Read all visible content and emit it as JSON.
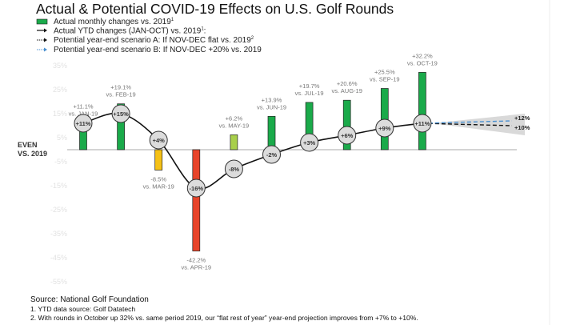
{
  "title": "Actual & Potential COVID-19 Effects on U.S. Golf Rounds",
  "legend": [
    {
      "label": "Actual monthly changes vs. 2019",
      "sup": "1",
      "icon": "green-bar",
      "color": "#1aaa4a"
    },
    {
      "label": "Actual YTD changes (JAN-OCT) vs. 2019",
      "sup": "1",
      "suffix": ":",
      "icon": "solid-arrow",
      "color": "#111111"
    },
    {
      "label": "Potential year-end scenario A: If NOV-DEC flat vs. 2019",
      "sup": "2",
      "icon": "dashed-black-arrow",
      "color": "#111111"
    },
    {
      "label": "Potential year-end scenario B: If NOV-DEC +20% vs. 2019",
      "icon": "dashed-blue-arrow",
      "color": "#4a90d0"
    }
  ],
  "chart_data": {
    "type": "bar",
    "title": "Actual & Potential COVID-19 Effects on U.S. Golf Rounds",
    "zero_label": [
      "EVEN",
      "VS. 2019"
    ],
    "yticks": [
      "35%",
      "25%",
      "15%",
      "5%",
      "-5%",
      "-15%",
      "-25%",
      "-35%",
      "-45%",
      "-55%"
    ],
    "ytick_values": [
      35,
      25,
      15,
      5,
      -5,
      -15,
      -25,
      -35,
      -45,
      -55
    ],
    "ylim": [
      -57,
      37
    ],
    "grid": false,
    "categories": [
      "JAN",
      "FEB",
      "MAR",
      "APR",
      "MAY",
      "JUN",
      "JUL",
      "AUG",
      "SEP",
      "OCT"
    ],
    "monthly": {
      "values": [
        11.1,
        19.1,
        -8.5,
        -42.2,
        6.2,
        13.9,
        19.7,
        20.6,
        25.5,
        32.2
      ],
      "value_labels": [
        "+11.1%",
        "+19.1%",
        "-8.5%",
        "-42.2%",
        "+6.2%",
        "+13.9%",
        "+19.7%",
        "+20.6%",
        "+25.5%",
        "+32.2%"
      ],
      "compare_labels": [
        "vs. JAN-19",
        "vs. FEB-19",
        "vs. MAR-19",
        "vs. APR-19",
        "vs. MAY-19",
        "vs. JUN-19",
        "vs. JUL-19",
        "vs. AUG-19",
        "vs. SEP-19",
        "vs. OCT-19"
      ],
      "colors": [
        "#1aaa4a",
        "#1aaa4a",
        "#f5c116",
        "#e8442a",
        "#a8cf4a",
        "#1aaa4a",
        "#1aaa4a",
        "#1aaa4a",
        "#1aaa4a",
        "#1aaa4a"
      ]
    },
    "ytd": {
      "values": [
        11,
        15,
        4,
        -16,
        -8,
        -2,
        3,
        6,
        9,
        11
      ],
      "labels": [
        "+11%",
        "+15%",
        "+4%",
        "-16%",
        "-8%",
        "-2%",
        "+3%",
        "+6%",
        "+9%",
        "+11%"
      ]
    },
    "scenarios": [
      {
        "name": "A",
        "value": 10,
        "label": "+10%",
        "color": "#111111"
      },
      {
        "name": "B",
        "value": 12,
        "label": "+12%",
        "color": "#4a90d0"
      }
    ]
  },
  "footer": {
    "source": "Source: National Golf Foundation",
    "notes": [
      "1. YTD data source: Golf Datatech",
      "2. With rounds in October up 32% vs. same period 2019, our “flat rest of year” year-end projection improves from +7% to +10%."
    ]
  }
}
